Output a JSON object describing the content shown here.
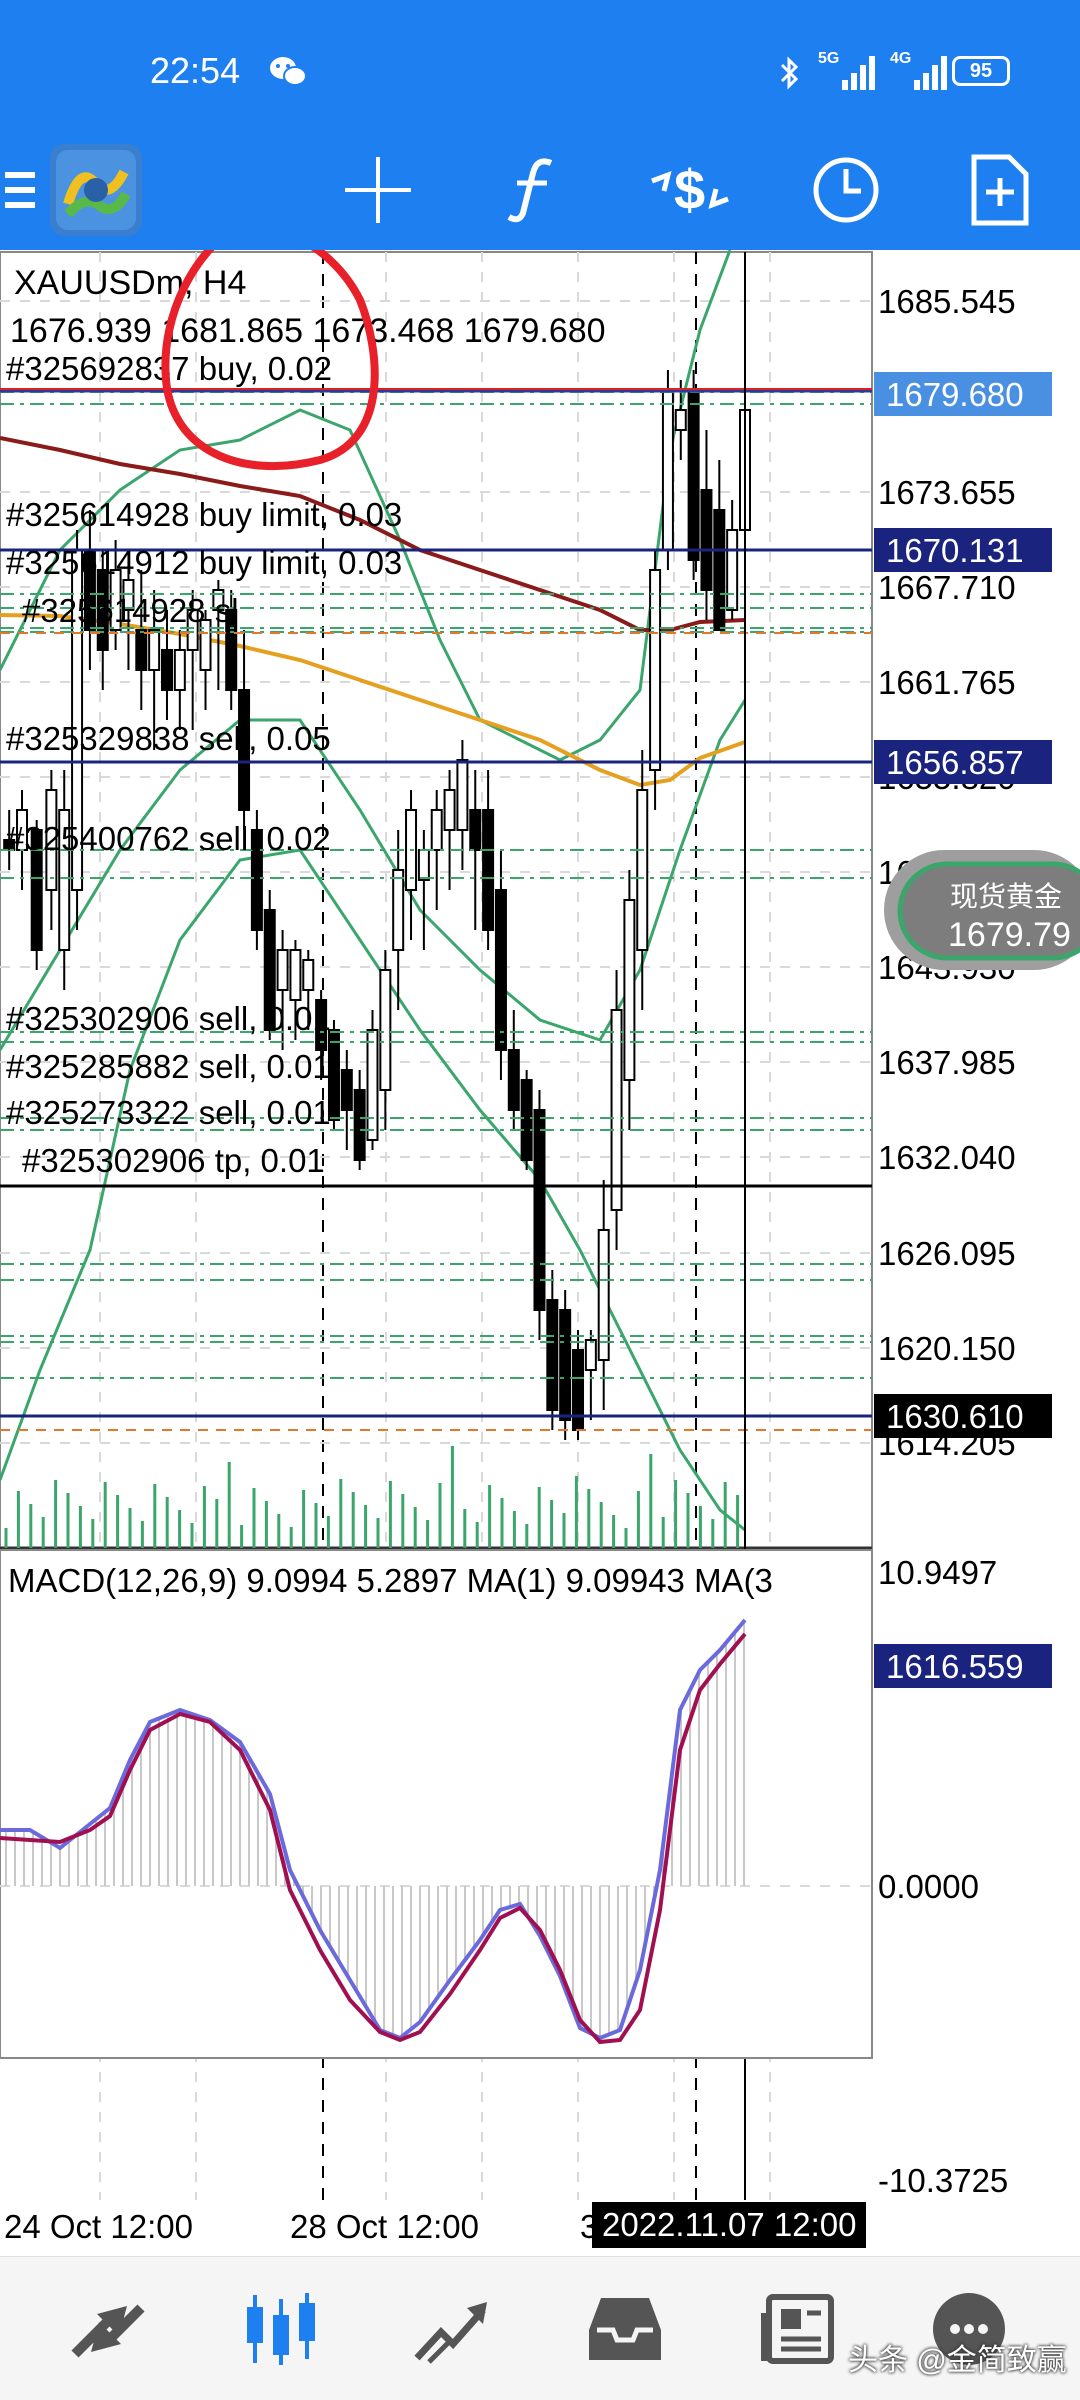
{
  "status_bar": {
    "time": "22:54",
    "battery": "95",
    "signal_1": "5G",
    "signal_2": "4G"
  },
  "chart": {
    "symbol": "XAUUSDm, H4",
    "ohlc": "1676.939 1681.865 1673.468 1679.680",
    "price_axis": [
      "1685.545",
      "1673.655",
      "1667.710",
      "1661.765",
      "1655.820",
      "1649.875",
      "1643.930",
      "1637.985",
      "1632.040",
      "1626.095",
      "1620.150",
      "1614.205"
    ],
    "price_tags": {
      "bid": "1679.680",
      "level_1670": "1670.131",
      "level_1656": "1656.857",
      "level_1630": "1630.610",
      "level_1616": "1616.559"
    },
    "orders": [
      "#325692837 buy, 0.02",
      "#325614928 buy limit, 0.03",
      "#325614912 buy limit, 0.03",
      "#325614928 sl",
      "#325329838 sell, 0.05",
      "#325400762 sell, 0.02",
      "#325302906 sell, 0.01",
      "#325285882 sell, 0.01",
      "#325273322 sell, 0.01",
      "#325302906 tp, 0.01"
    ],
    "badge": {
      "label": "现货黄金",
      "price": "1679.79"
    },
    "macd_label": "MACD(12,26,9) 9.0994 5.2897 MA(1) 9.09943 MA(3",
    "macd_axis": [
      "10.9497",
      "0.0000",
      "-10.3725"
    ],
    "time_axis": [
      "24 Oct 12:00",
      "28 Oct 12:00",
      "3"
    ],
    "time_cursor": "2022.11.07 12:00",
    "colors": {
      "bull": "#ffffff",
      "bear": "#000000",
      "bollinger": "#3aa66c",
      "ma_slow": "#8b1a1a",
      "ma_fast": "#e6a020",
      "macd_line": "#6a6adc",
      "signal_line": "#a01050",
      "tag_blue": "#1a237e",
      "tag_bid": "#4a90e2",
      "annotation": "#e8202a"
    }
  },
  "watermark": "头条 @金简致赢",
  "nav": {
    "items": [
      "quotes-icon",
      "chart-icon",
      "trade-icon",
      "history-icon",
      "news-icon",
      "messages-icon"
    ]
  }
}
